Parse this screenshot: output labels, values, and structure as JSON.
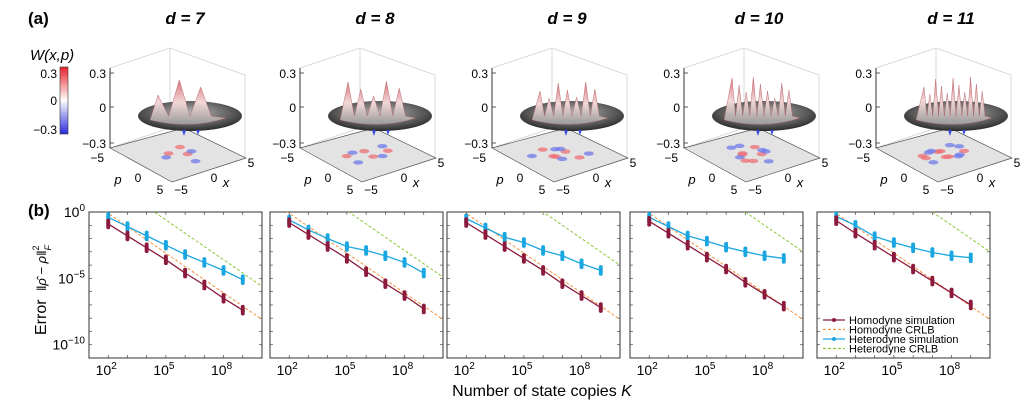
{
  "panel_labels": {
    "a": "(a)",
    "b": "(b)"
  },
  "colorbar": {
    "label": "W(x,p)",
    "ticks": [
      "0.3",
      "0",
      "−0.3"
    ],
    "colors": [
      "#e8212b",
      "#ffffff",
      "#2a2ae0"
    ],
    "range": [
      -0.3,
      0.3
    ]
  },
  "wigner_panels": [
    {
      "title": "d = 7",
      "d": 7
    },
    {
      "title": "d = 8",
      "d": 8
    },
    {
      "title": "d = 9",
      "d": 9
    },
    {
      "title": "d = 10",
      "d": 10
    },
    {
      "title": "d = 11",
      "d": 11
    }
  ],
  "wigner_axes": {
    "z_ticks": [
      "0.3",
      "0",
      "−0.3"
    ],
    "p_label": "p",
    "x_label": "x",
    "p_ticks": [
      "−5",
      "0",
      "5"
    ],
    "x_ticks": [
      "−5",
      "0",
      "5"
    ]
  },
  "chart_data": [
    {
      "type": "line",
      "title": "d = 7",
      "xscale": "log",
      "yscale": "log",
      "xlim": [
        10.0,
        10000000000.0
      ],
      "ylim": [
        1e-11,
        1.0
      ],
      "x": [
        100.0,
        1000.0,
        10000.0,
        100000.0,
        1000000.0,
        10000000.0,
        100000000.0,
        1000000000.0
      ],
      "series": [
        {
          "name": "Homodyne simulation",
          "log10_values": [
            -0.9,
            -1.8,
            -2.7,
            -3.6,
            -4.6,
            -5.5,
            -6.5,
            -7.4
          ]
        },
        {
          "name": "Heterodyne simulation",
          "log10_values": [
            -0.4,
            -1.1,
            -1.8,
            -2.5,
            -3.2,
            -3.8,
            -4.4,
            -5.1
          ]
        },
        {
          "name": "Homodyne CRLB",
          "log10_intercept_at_K1": 1.9
        },
        {
          "name": "Heterodyne CRLB",
          "log10_intercept_at_K1": 4.4
        }
      ]
    },
    {
      "type": "line",
      "title": "d = 8",
      "xscale": "log",
      "yscale": "log",
      "xlim": [
        10.0,
        10000000000.0
      ],
      "ylim": [
        1e-11,
        1.0
      ],
      "x": [
        100.0,
        1000.0,
        10000.0,
        100000.0,
        1000000.0,
        10000000.0,
        100000000.0,
        1000000000.0
      ],
      "series": [
        {
          "name": "Homodyne simulation",
          "log10_values": [
            -0.8,
            -1.7,
            -2.6,
            -3.5,
            -4.5,
            -5.4,
            -6.3,
            -7.3
          ]
        },
        {
          "name": "Heterodyne simulation",
          "log10_values": [
            -0.6,
            -1.35,
            -2.0,
            -2.6,
            -2.9,
            -3.3,
            -3.8,
            -4.6
          ]
        },
        {
          "name": "Homodyne CRLB",
          "log10_intercept_at_K1": 1.9
        },
        {
          "name": "Heterodyne CRLB",
          "log10_intercept_at_K1": 5.1
        }
      ]
    },
    {
      "type": "line",
      "title": "d = 9",
      "xscale": "log",
      "yscale": "log",
      "xlim": [
        10.0,
        10000000000.0
      ],
      "ylim": [
        1e-11,
        1.0
      ],
      "x": [
        100.0,
        1000.0,
        10000.0,
        100000.0,
        1000000.0,
        10000000.0,
        100000000.0,
        1000000000.0
      ],
      "series": [
        {
          "name": "Homodyne simulation",
          "log10_values": [
            -0.8,
            -1.7,
            -2.6,
            -3.5,
            -4.4,
            -5.4,
            -6.3,
            -7.2
          ]
        },
        {
          "name": "Heterodyne simulation",
          "log10_values": [
            -0.5,
            -1.2,
            -1.9,
            -2.3,
            -2.9,
            -3.3,
            -3.9,
            -4.4
          ]
        },
        {
          "name": "Homodyne CRLB",
          "log10_intercept_at_K1": 1.9
        },
        {
          "name": "Heterodyne CRLB",
          "log10_intercept_at_K1": 6.0
        }
      ]
    },
    {
      "type": "line",
      "title": "d = 10",
      "xscale": "log",
      "yscale": "log",
      "xlim": [
        10.0,
        10000000000.0
      ],
      "ylim": [
        1e-11,
        1.0
      ],
      "x": [
        100.0,
        1000.0,
        10000.0,
        100000.0,
        1000000.0,
        10000000.0,
        100000000.0,
        1000000000.0
      ],
      "series": [
        {
          "name": "Homodyne simulation",
          "log10_values": [
            -0.7,
            -1.6,
            -2.5,
            -3.4,
            -4.3,
            -5.3,
            -6.2,
            -7.1
          ]
        },
        {
          "name": "Heterodyne simulation",
          "log10_values": [
            -0.4,
            -1.1,
            -1.8,
            -2.2,
            -2.65,
            -3.0,
            -3.3,
            -3.5
          ]
        },
        {
          "name": "Homodyne CRLB",
          "log10_intercept_at_K1": 1.9
        },
        {
          "name": "Heterodyne CRLB",
          "log10_intercept_at_K1": 7.0
        }
      ]
    },
    {
      "type": "line",
      "title": "d = 11",
      "xscale": "log",
      "yscale": "log",
      "xlim": [
        10.0,
        10000000000.0
      ],
      "ylim": [
        1e-11,
        1.0
      ],
      "x": [
        100.0,
        1000.0,
        10000.0,
        100000.0,
        1000000.0,
        10000000.0,
        100000000.0,
        1000000000.0
      ],
      "series": [
        {
          "name": "Homodyne simulation",
          "log10_values": [
            -0.65,
            -1.6,
            -2.5,
            -3.4,
            -4.3,
            -5.2,
            -6.1,
            -7.0
          ]
        },
        {
          "name": "Heterodyne simulation",
          "log10_values": [
            -0.35,
            -1.0,
            -1.85,
            -2.3,
            -2.7,
            -3.05,
            -3.3,
            -3.45
          ]
        },
        {
          "name": "Homodyne CRLB",
          "log10_intercept_at_K1": 1.9
        },
        {
          "name": "Heterodyne CRLB",
          "log10_intercept_at_K1": 7.0
        }
      ]
    }
  ],
  "axes": {
    "y_ticks": [
      {
        "exp": 0,
        "label": "10",
        "sup": "0"
      },
      {
        "exp": -5,
        "label": "10",
        "sup": "−5"
      },
      {
        "exp": -10,
        "label": "10",
        "sup": "−10"
      }
    ],
    "x_ticks": [
      {
        "exp": 2,
        "label": "10",
        "sup": "2"
      },
      {
        "exp": 5,
        "label": "10",
        "sup": "5"
      },
      {
        "exp": 8,
        "label": "10",
        "sup": "8"
      }
    ],
    "ylabel_prefix": "Error",
    "ylabel_norm": "‖ρ̂ − ρ‖",
    "ylabel_sup": "2",
    "ylabel_sub": "F",
    "xlabel": "Number of state copies ",
    "xlabel_var": "K"
  },
  "legend": [
    {
      "label": "Homodyne simulation",
      "color": "#8b1a3c",
      "style": "line-marker"
    },
    {
      "label": "Homodyne CRLB",
      "color": "#f5923e",
      "style": "dashed"
    },
    {
      "label": "Heterodyne simulation",
      "color": "#1aa6e0",
      "style": "line-marker"
    },
    {
      "label": "Heterodyne CRLB",
      "color": "#8cc63f",
      "style": "dashed"
    }
  ]
}
